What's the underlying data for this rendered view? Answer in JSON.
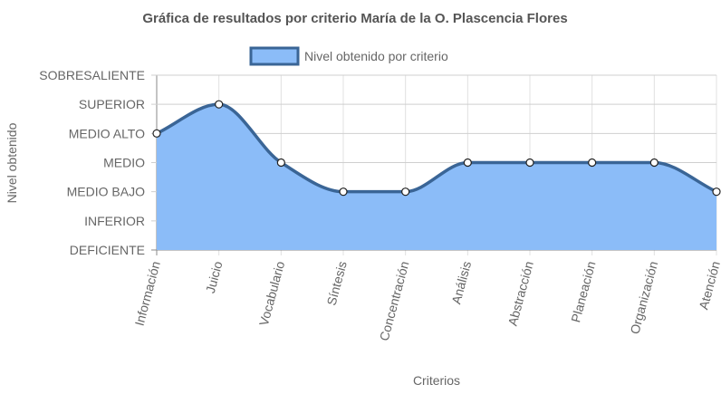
{
  "chart_data": {
    "type": "area",
    "title": "Gráfica de resultados por criterio María de la O. Plascencia Flores",
    "xlabel": "Criterios",
    "ylabel": "Nivel obtenido",
    "legend_position": "top",
    "grid": true,
    "categories": [
      "Información",
      "Juicio",
      "Vocabulario",
      "Síntesis",
      "Concentración",
      "Análisis",
      "Abstracción",
      "Planeación",
      "Organización",
      "Atención"
    ],
    "y_levels": [
      "DEFICIENTE",
      "INFERIOR",
      "MEDIO BAJO",
      "MEDIO",
      "MEDIO ALTO",
      "SUPERIOR",
      "SOBRESALIENTE"
    ],
    "ylim": [
      0,
      6
    ],
    "series": [
      {
        "name": "Nivel obtenido por criterio",
        "values": [
          4,
          5,
          3,
          2,
          2,
          3,
          3,
          3,
          3,
          2
        ],
        "fill_color": "#8bbcf8",
        "line_color": "#3a6596"
      }
    ]
  }
}
